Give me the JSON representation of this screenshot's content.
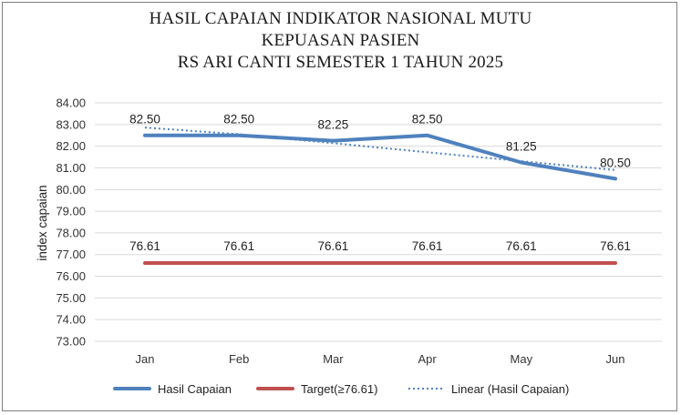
{
  "chart_data": {
    "type": "line",
    "title_lines": [
      "HASIL CAPAIAN INDIKATOR NASIONAL MUTU",
      "KEPUASAN PASIEN",
      "RS ARI CANTI SEMESTER 1 TAHUN 2025"
    ],
    "ylabel": "index capaian",
    "categories": [
      "Jan",
      "Feb",
      "Mar",
      "Apr",
      "May",
      "Jun"
    ],
    "ylim": [
      73.0,
      84.0
    ],
    "ytick_step": 1.0,
    "ytick_labels": [
      "73.00",
      "74.00",
      "75.00",
      "76.00",
      "77.00",
      "78.00",
      "79.00",
      "80.00",
      "81.00",
      "82.00",
      "83.00",
      "84.00"
    ],
    "grid": true,
    "legend_position": "bottom",
    "series": [
      {
        "name": "Hasil Capaian",
        "values": [
          82.5,
          82.5,
          82.25,
          82.5,
          81.25,
          80.5
        ],
        "labels": [
          "82.50",
          "82.50",
          "82.25",
          "82.50",
          "81.25",
          "80.50"
        ],
        "color": "#4f81bd",
        "style": "solid"
      },
      {
        "name": "Target(≥76.61)",
        "values": [
          76.61,
          76.61,
          76.61,
          76.61,
          76.61,
          76.61
        ],
        "labels": [
          "76.61",
          "76.61",
          "76.61",
          "76.61",
          "76.61",
          "76.61"
        ],
        "color": "#c0504d",
        "style": "solid"
      },
      {
        "name": "Linear (Hasil Capaian)",
        "values": [
          82.86,
          82.55,
          82.14,
          81.72,
          81.31,
          80.9
        ],
        "color": "#4f81bd",
        "style": "dotted",
        "trendline": true
      }
    ]
  }
}
